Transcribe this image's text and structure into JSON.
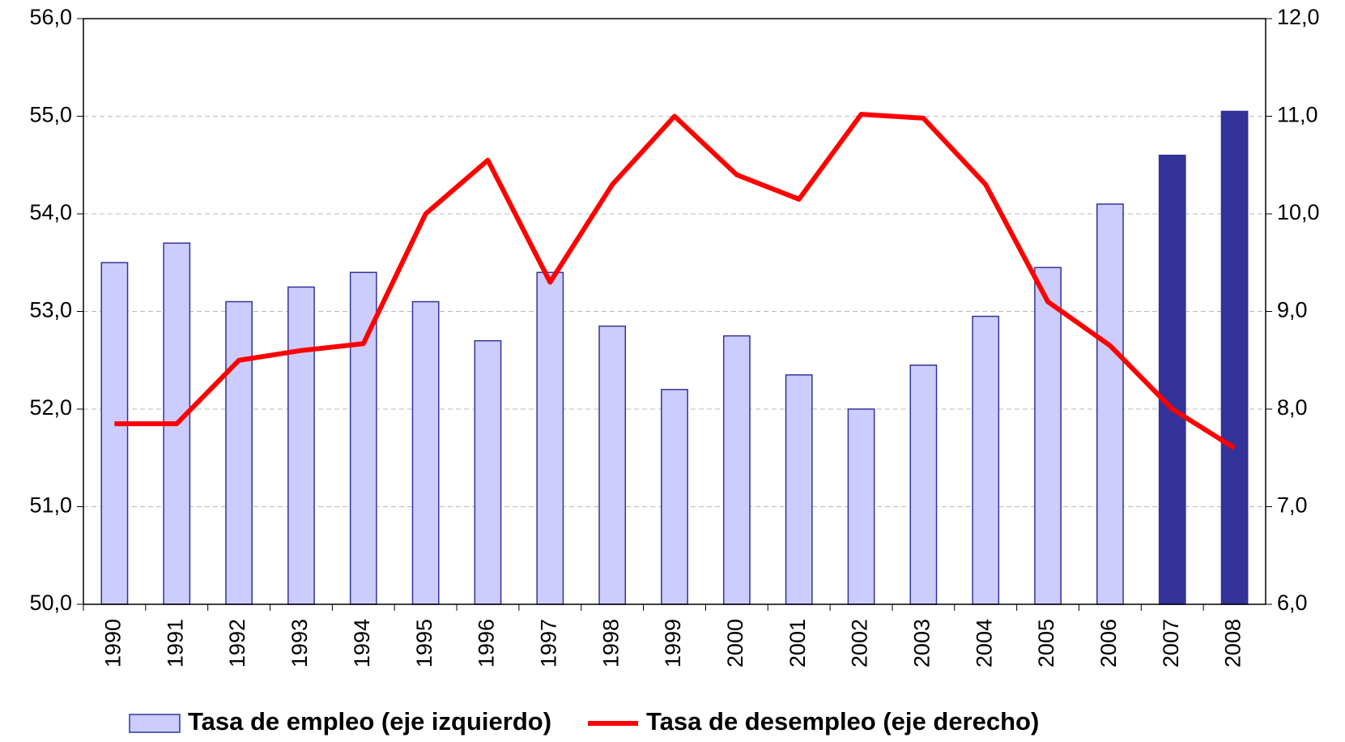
{
  "chart_data": {
    "type": "bar_line",
    "categories": [
      "1990",
      "1991",
      "1992",
      "1993",
      "1994",
      "1995",
      "1996",
      "1997",
      "1998",
      "1999",
      "2000",
      "2001",
      "2002",
      "2003",
      "2004",
      "2005",
      "2006",
      "2007",
      "2008"
    ],
    "series": [
      {
        "name": "Tasa de empleo (eje izquierdo)",
        "type": "bar",
        "color": "#ccccff",
        "edge": "#333399",
        "colors": [
          "#ccccff",
          "#ccccff",
          "#ccccff",
          "#ccccff",
          "#ccccff",
          "#ccccff",
          "#ccccff",
          "#ccccff",
          "#ccccff",
          "#ccccff",
          "#ccccff",
          "#ccccff",
          "#ccccff",
          "#ccccff",
          "#ccccff",
          "#ccccff",
          "#ccccff",
          "#333399",
          "#333399"
        ],
        "values": [
          53.5,
          53.7,
          53.1,
          53.25,
          53.4,
          53.1,
          52.7,
          53.4,
          52.85,
          52.2,
          52.75,
          52.35,
          52.0,
          52.45,
          52.95,
          53.45,
          54.1,
          54.6,
          55.05
        ]
      },
      {
        "name": "Tasa de desempleo (eje derecho)",
        "type": "line",
        "color": "#ff0000",
        "axis": "y2",
        "values": [
          7.85,
          7.85,
          8.5,
          8.6,
          8.67,
          10.0,
          10.55,
          9.3,
          10.3,
          11.0,
          10.4,
          10.15,
          11.02,
          10.98,
          10.3,
          9.1,
          8.65,
          8.0,
          7.6
        ]
      }
    ],
    "ylim": [
      50,
      56
    ],
    "yticks": [
      {
        "value": 50,
        "label": "50,0"
      },
      {
        "value": 51,
        "label": "51,0"
      },
      {
        "value": 52,
        "label": "52,0"
      },
      {
        "value": 53,
        "label": "53,0"
      },
      {
        "value": 54,
        "label": "54,0"
      },
      {
        "value": 55,
        "label": "55,0"
      },
      {
        "value": 56,
        "label": "56,0"
      }
    ],
    "y2lim": [
      6,
      12
    ],
    "y2ticks": [
      {
        "value": 6,
        "label": "6,0"
      },
      {
        "value": 7,
        "label": "7,0"
      },
      {
        "value": 8,
        "label": "8,0"
      },
      {
        "value": 9,
        "label": "9,0"
      },
      {
        "value": 10,
        "label": "10,0"
      },
      {
        "value": 11,
        "label": "11,0"
      },
      {
        "value": 12,
        "label": "12,0"
      }
    ],
    "grid": true,
    "legend": "bottom"
  }
}
